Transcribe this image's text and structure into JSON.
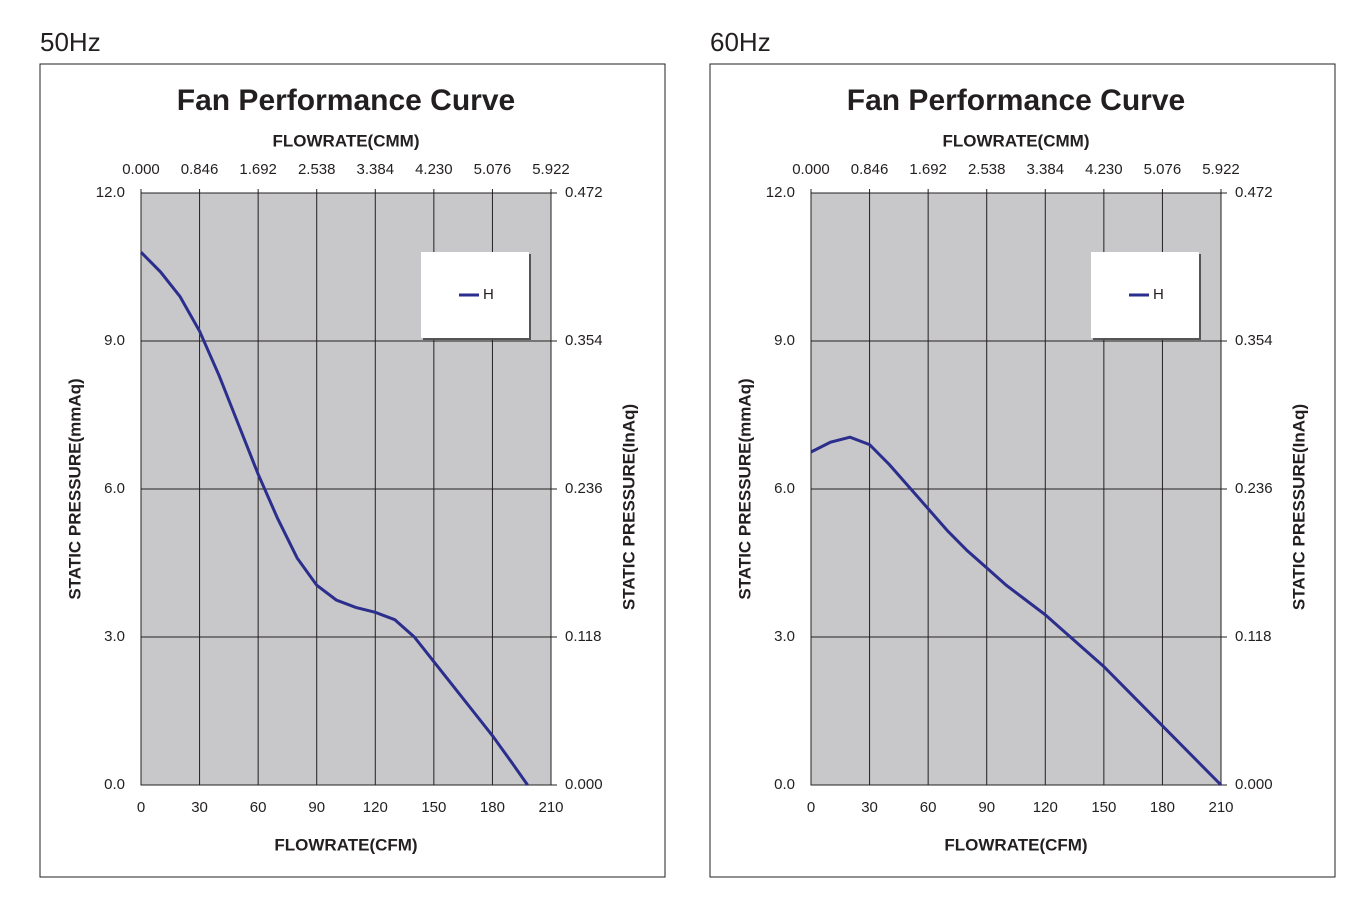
{
  "chart_data": [
    {
      "type": "line",
      "label": "50Hz",
      "title": "Fan Performance Curve",
      "x_label": "FLOWRATE(CFM)",
      "x2_label": "FLOWRATE(CMM)",
      "y_label": "STATIC PRESSURE(mmAq)",
      "y2_label": "STATIC PRESSURE(InAq)",
      "xlim": [
        0,
        210
      ],
      "xticks": [
        0,
        30,
        60,
        90,
        120,
        150,
        180,
        210
      ],
      "x2lim": [
        0,
        5.922
      ],
      "x2ticks": [
        {
          "value": 0,
          "label": "0.000"
        },
        0.846,
        1.692,
        2.538,
        3.384,
        {
          "value": 4.23,
          "label": "4.230"
        },
        5.076,
        5.922
      ],
      "ylim": [
        0,
        12
      ],
      "yticks": [
        {
          "value": 0,
          "label": "0.0"
        },
        {
          "value": 3,
          "label": "3.0"
        },
        {
          "value": 6,
          "label": "6.0"
        },
        {
          "value": 9,
          "label": "9.0"
        },
        {
          "value": 12,
          "label": "12.0"
        }
      ],
      "y2lim": [
        0,
        0.472
      ],
      "y2ticks": [
        {
          "value": 0,
          "label": "0.000"
        },
        0.118,
        0.236,
        0.354,
        0.472
      ],
      "grid": true,
      "legend": "upper right",
      "x": [
        0,
        10,
        20,
        30,
        40,
        50,
        60,
        70,
        80,
        90,
        100,
        110,
        120,
        130,
        140,
        150,
        160,
        170,
        180,
        190,
        198
      ],
      "series": [
        {
          "name": "H",
          "color": "#2b2e8c",
          "values": [
            10.8,
            10.4,
            9.9,
            9.2,
            8.3,
            7.3,
            6.3,
            5.4,
            4.6,
            4.05,
            3.75,
            3.6,
            3.5,
            3.35,
            3.0,
            2.5,
            2.0,
            1.5,
            1.0,
            0.45,
            0
          ]
        }
      ]
    },
    {
      "type": "line",
      "label": "60Hz",
      "title": "Fan Performance Curve",
      "x_label": "FLOWRATE(CFM)",
      "x2_label": "FLOWRATE(CMM)",
      "y_label": "STATIC PRESSURE(mmAq)",
      "y2_label": "STATIC PRESSURE(InAq)",
      "xlim": [
        0,
        210
      ],
      "xticks": [
        0,
        30,
        60,
        90,
        120,
        150,
        180,
        210
      ],
      "x2lim": [
        0,
        5.922
      ],
      "x2ticks": [
        {
          "value": 0,
          "label": "0.000"
        },
        0.846,
        1.692,
        2.538,
        3.384,
        {
          "value": 4.23,
          "label": "4.230"
        },
        5.076,
        5.922
      ],
      "ylim": [
        0,
        12
      ],
      "yticks": [
        {
          "value": 0,
          "label": "0.0"
        },
        {
          "value": 3,
          "label": "3.0"
        },
        {
          "value": 6,
          "label": "6.0"
        },
        {
          "value": 9,
          "label": "9.0"
        },
        {
          "value": 12,
          "label": "12.0"
        }
      ],
      "y2lim": [
        0,
        0.472
      ],
      "y2ticks": [
        {
          "value": 0,
          "label": "0.000"
        },
        0.118,
        0.236,
        0.354,
        0.472
      ],
      "grid": true,
      "legend": "upper right",
      "x": [
        0,
        10,
        20,
        30,
        40,
        50,
        60,
        70,
        80,
        90,
        100,
        110,
        120,
        130,
        140,
        150,
        160,
        170,
        180,
        190,
        200,
        210
      ],
      "series": [
        {
          "name": "H",
          "color": "#2b2e8c",
          "values": [
            6.75,
            6.95,
            7.05,
            6.9,
            6.5,
            6.05,
            5.6,
            5.15,
            4.75,
            4.4,
            4.05,
            3.75,
            3.45,
            3.1,
            2.75,
            2.4,
            2.0,
            1.6,
            1.2,
            0.8,
            0.4,
            0
          ]
        }
      ]
    }
  ]
}
